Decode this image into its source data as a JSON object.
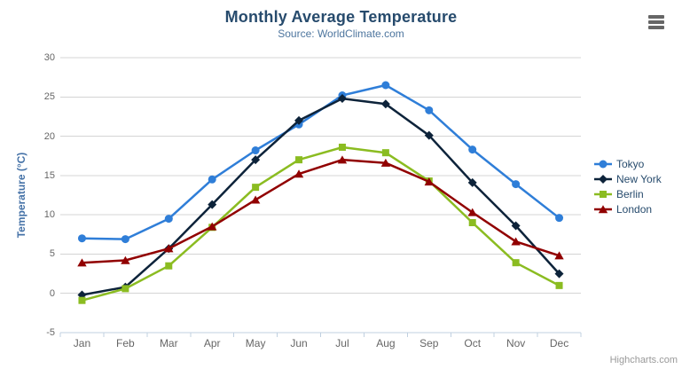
{
  "header": {
    "title": "Monthly Average Temperature",
    "subtitle": "Source: WorldClimate.com"
  },
  "toolbar": {
    "context_menu_icon": "hamburger-icon"
  },
  "credits": {
    "label": "Highcharts.com"
  },
  "colors": {
    "title": "#274b6d",
    "subtitle": "#4d759e",
    "axis_title": "#4572a7",
    "tick_label": "#666666",
    "grid": "#d4d4d4",
    "axis_line": "#c0d0e0",
    "legend_text": "#274b6d",
    "credits": "#999999",
    "menu_icon": "#666666"
  },
  "chart_data": {
    "type": "line",
    "title": "Monthly Average Temperature",
    "subtitle": "Source: WorldClimate.com",
    "xlabel": "",
    "ylabel": "Temperature (°C)",
    "categories": [
      "Jan",
      "Feb",
      "Mar",
      "Apr",
      "May",
      "Jun",
      "Jul",
      "Aug",
      "Sep",
      "Oct",
      "Nov",
      "Dec"
    ],
    "series": [
      {
        "name": "Tokyo",
        "color": "#2f7ed8",
        "marker": "circle",
        "values": [
          7.0,
          6.9,
          9.5,
          14.5,
          18.2,
          21.5,
          25.2,
          26.5,
          23.3,
          18.3,
          13.9,
          9.6
        ]
      },
      {
        "name": "New York",
        "color": "#0d233a",
        "marker": "diamond",
        "values": [
          -0.2,
          0.8,
          5.7,
          11.3,
          17.0,
          22.0,
          24.8,
          24.1,
          20.1,
          14.1,
          8.6,
          2.5
        ]
      },
      {
        "name": "Berlin",
        "color": "#8bbc21",
        "marker": "square",
        "values": [
          -0.9,
          0.6,
          3.5,
          8.4,
          13.5,
          17.0,
          18.6,
          17.9,
          14.3,
          9.0,
          3.9,
          1.0
        ]
      },
      {
        "name": "London",
        "color": "#910000",
        "marker": "triangle",
        "values": [
          3.9,
          4.2,
          5.7,
          8.5,
          11.9,
          15.2,
          17.0,
          16.6,
          14.2,
          10.3,
          6.6,
          4.8
        ]
      }
    ],
    "ylim": [
      -5,
      30
    ],
    "yticks": [
      -5,
      0,
      5,
      10,
      15,
      20,
      25,
      30
    ],
    "grid": "horizontal",
    "legend_position": "right"
  }
}
